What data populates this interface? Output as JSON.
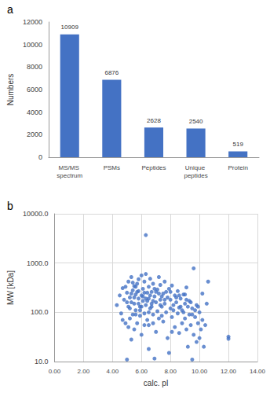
{
  "chart_data": [
    {
      "type": "bar",
      "title": "a",
      "categories": [
        "MS/MS spectrum",
        "PSMs",
        "Peptides",
        "Unique peptides",
        "Protein"
      ],
      "values": [
        10909,
        6876,
        2628,
        2540,
        519
      ],
      "color": "#4472c4",
      "y_label": "Numbers",
      "ylim": [
        0,
        12000
      ],
      "yticks": [
        0,
        2000,
        4000,
        6000,
        8000,
        10000,
        12000
      ],
      "grid": false,
      "data_labels": true
    },
    {
      "type": "scatter",
      "title": "b",
      "x_label": "calc. pI",
      "y_label": "MW [kDa]",
      "color": "#4472c4",
      "log": "y",
      "grid": true,
      "xlim": [
        0,
        14
      ],
      "xticks": [
        {
          "value": 0,
          "label": "0.00"
        },
        {
          "value": 2,
          "label": "2.00"
        },
        {
          "value": 4,
          "label": "4.00"
        },
        {
          "value": 6,
          "label": "6.00"
        },
        {
          "value": 8,
          "label": "8.00"
        },
        {
          "value": 10,
          "label": "10.00"
        },
        {
          "value": 12,
          "label": "12.00"
        },
        {
          "value": 14,
          "label": "14.00"
        }
      ],
      "ylim": [
        10,
        10000
      ],
      "yticks": [
        {
          "value": 10,
          "label": "10.0"
        },
        {
          "value": 100,
          "label": "100.0"
        },
        {
          "value": 1000,
          "label": "1000.0"
        },
        {
          "value": 10000,
          "label": "10000.0"
        }
      ],
      "x": [
        4.3,
        4.5,
        4.6,
        4.7,
        4.8,
        4.9,
        5.0,
        5.0,
        5.1,
        5.1,
        5.2,
        5.2,
        5.3,
        5.3,
        5.4,
        5.4,
        5.5,
        5.5,
        5.5,
        5.6,
        5.6,
        5.7,
        5.7,
        5.8,
        5.8,
        5.8,
        5.9,
        5.9,
        6.0,
        6.0,
        6.0,
        6.1,
        6.1,
        6.2,
        6.2,
        6.3,
        6.3,
        6.3,
        6.4,
        6.4,
        6.5,
        6.5,
        6.5,
        6.6,
        6.6,
        6.7,
        6.7,
        6.8,
        6.8,
        6.9,
        6.9,
        7.0,
        7.0,
        7.1,
        7.1,
        7.2,
        7.2,
        7.3,
        7.3,
        7.4,
        7.5,
        7.5,
        7.6,
        7.6,
        7.7,
        7.8,
        7.8,
        7.9,
        8.0,
        8.0,
        8.1,
        8.1,
        8.2,
        8.3,
        8.3,
        8.4,
        8.5,
        8.5,
        8.6,
        8.6,
        8.7,
        8.8,
        8.8,
        8.9,
        9.0,
        9.0,
        9.1,
        9.1,
        9.2,
        9.2,
        9.3,
        9.3,
        9.4,
        9.5,
        9.5,
        9.6,
        9.6,
        9.7,
        9.8,
        9.8,
        9.9,
        10.0,
        10.0,
        10.1,
        10.2,
        10.3,
        10.4,
        10.5,
        10.6,
        12.0,
        12.0,
        5.0,
        5.3,
        5.6,
        5.9,
        6.1,
        6.4,
        6.7,
        7.0,
        7.4,
        4.9,
        5.2,
        5.5,
        5.8,
        6.2,
        6.5,
        6.8,
        7.2,
        7.6,
        8.0,
        8.4,
        8.7,
        9.0,
        9.4,
        9.7,
        5.4,
        5.7,
        6.0,
        6.3,
        6.6,
        6.9,
        7.3,
        7.7,
        8.2,
        8.6,
        9.1,
        9.5,
        4.7,
        5.1,
        5.6,
        6.2,
        6.8,
        7.4,
        8.1,
        8.9,
        9.9,
        10.2,
        5.3,
        6.5,
        7.9
      ],
      "values": [
        140,
        220,
        95,
        310,
        180,
        60,
        11,
        250,
        130,
        420,
        75,
        200,
        160,
        520,
        90,
        280,
        45,
        150,
        340,
        230,
        110,
        60,
        380,
        190,
        270,
        470,
        130,
        85,
        220,
        560,
        35,
        170,
        300,
        95,
        420,
        3700,
        140,
        600,
        250,
        70,
        190,
        330,
        55,
        120,
        480,
        260,
        150,
        90,
        380,
        11.5,
        210,
        160,
        40,
        290,
        105,
        75,
        520,
        180,
        360,
        130,
        240,
        65,
        150,
        420,
        100,
        200,
        30,
        300,
        120,
        180,
        80,
        350,
        140,
        220,
        50,
        160,
        95,
        270,
        125,
        38,
        190,
        110,
        60,
        230,
        150,
        75,
        320,
        45,
        130,
        20,
        90,
        170,
        55,
        11,
        120,
        780,
        35,
        80,
        140,
        25,
        60,
        100,
        30,
        45,
        70,
        20,
        55,
        150,
        420,
        32,
        29,
        160,
        240,
        330,
        110,
        210,
        170,
        130,
        260,
        210,
        330,
        120,
        200,
        150,
        250,
        100,
        170,
        240,
        180,
        260,
        200,
        130,
        230,
        160,
        110,
        400,
        260,
        130,
        190,
        220,
        300,
        140,
        260,
        110,
        220,
        180,
        90,
        70,
        50,
        90,
        55,
        60,
        85,
        40,
        100,
        130,
        240,
        28,
        18,
        15
      ]
    }
  ]
}
